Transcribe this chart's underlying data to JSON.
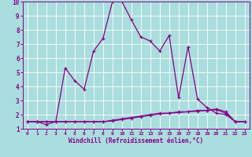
{
  "xlabel": "Windchill (Refroidissement éolien,°C)",
  "xlim": [
    -0.5,
    23.5
  ],
  "ylim": [
    1,
    10
  ],
  "xticks": [
    0,
    1,
    2,
    3,
    4,
    5,
    6,
    7,
    8,
    9,
    10,
    11,
    12,
    13,
    14,
    15,
    16,
    17,
    18,
    19,
    20,
    21,
    22,
    23
  ],
  "yticks": [
    1,
    2,
    3,
    4,
    5,
    6,
    7,
    8,
    9,
    10
  ],
  "line_color": "#880088",
  "bg_color": "#aadddd",
  "grid_color": "#bbdddd",
  "series_main": {
    "x": [
      0,
      1,
      2,
      3,
      4,
      5,
      6,
      7,
      8,
      9,
      10,
      11,
      12,
      13,
      14,
      15,
      16,
      17,
      18,
      19,
      20,
      21,
      22,
      23
    ],
    "y": [
      1.5,
      1.5,
      1.3,
      1.5,
      5.3,
      4.4,
      3.8,
      6.5,
      7.4,
      10.0,
      10.0,
      8.7,
      7.5,
      7.2,
      6.5,
      7.6,
      3.2,
      6.8,
      3.1,
      2.5,
      2.1,
      2.0,
      1.5,
      1.5
    ]
  },
  "series_flat1": {
    "x": [
      0,
      1,
      2,
      3,
      4,
      5,
      6,
      7,
      8,
      9,
      10,
      11,
      12,
      13,
      14,
      15,
      16,
      17,
      18,
      19,
      20,
      21,
      22,
      23
    ],
    "y": [
      1.5,
      1.5,
      1.5,
      1.5,
      1.5,
      1.5,
      1.5,
      1.5,
      1.5,
      1.6,
      1.7,
      1.8,
      1.9,
      2.0,
      2.1,
      2.1,
      2.2,
      2.2,
      2.3,
      2.3,
      2.4,
      2.2,
      1.5,
      1.5
    ]
  },
  "series_flat2": {
    "x": [
      0,
      1,
      2,
      3,
      4,
      5,
      6,
      7,
      8,
      9,
      10,
      11,
      12,
      13,
      14,
      15,
      16,
      17,
      18,
      19,
      20,
      21,
      22,
      23
    ],
    "y": [
      1.5,
      1.5,
      1.5,
      1.5,
      1.5,
      1.5,
      1.5,
      1.5,
      1.5,
      1.55,
      1.65,
      1.75,
      1.85,
      1.95,
      2.05,
      2.1,
      2.15,
      2.2,
      2.25,
      2.3,
      2.35,
      2.1,
      1.5,
      1.5
    ]
  }
}
